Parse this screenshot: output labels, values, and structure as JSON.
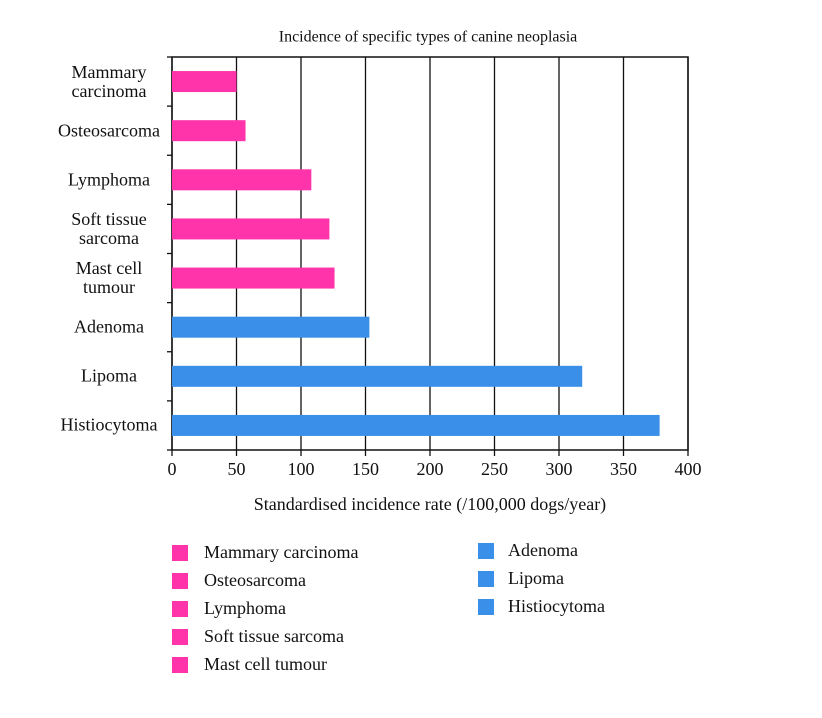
{
  "chart_data": {
    "type": "bar",
    "orientation": "horizontal",
    "title": "Incidence of specific types of canine neoplasia",
    "x_label": "Standardised incidence rate (/100,000 dogs/year)",
    "categories": [
      "Mammary carcinoma",
      "Osteosarcoma",
      "Lymphoma",
      "Soft tissue sarcoma",
      "Mast cell tumour",
      "Adenoma",
      "Lipoma",
      "Histiocytoma"
    ],
    "values": [
      50,
      57,
      108,
      122,
      126,
      153,
      318,
      378
    ],
    "colors": [
      "#ff33aa",
      "#ff33aa",
      "#ff33aa",
      "#ff33aa",
      "#ff33aa",
      "#3a8fe8",
      "#3a8fe8",
      "#3a8fe8"
    ],
    "xlim": [
      0,
      400
    ],
    "xticks": [
      0,
      50,
      100,
      150,
      200,
      250,
      300,
      350,
      400
    ],
    "grid": true
  }
}
